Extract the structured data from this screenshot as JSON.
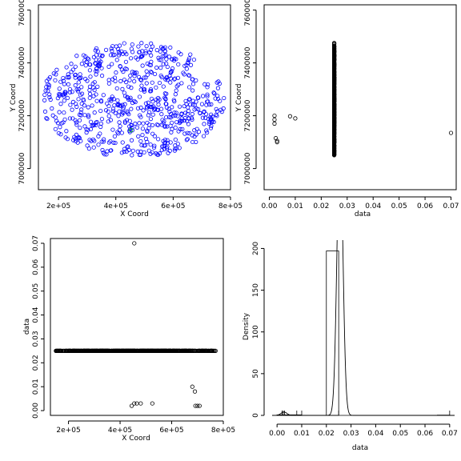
{
  "chart_data": [
    {
      "type": "scatter",
      "xlabel": "X Coord",
      "ylabel": "Y Coord",
      "xlim": [
        130000,
        800000
      ],
      "ylim": [
        6920000,
        7620000
      ],
      "xticks": [
        "2e+05",
        "4e+05",
        "6e+05",
        "8e+05"
      ],
      "yticks": [
        "7000000",
        "7200000",
        "7400000",
        "7600000"
      ],
      "point_color": "#0000ff",
      "highlight_color": "#00c000",
      "n_points": 700,
      "highlight_points": [
        {
          "x": 453000,
          "y": 7145000
        }
      ]
    },
    {
      "type": "scatter",
      "xlabel": "data",
      "ylabel": "Y Coord",
      "xlim": [
        0,
        0.07
      ],
      "ylim": [
        6920000,
        7620000
      ],
      "xticks": [
        "0.00",
        "0.01",
        "0.02",
        "0.03",
        "0.04",
        "0.05",
        "0.06",
        "0.07"
      ],
      "yticks": [
        "7000000",
        "7200000",
        "7400000",
        "7600000"
      ],
      "main_cluster": {
        "x": 0.025,
        "y_range": [
          7050000,
          7490000
        ]
      },
      "outliers": [
        {
          "x": 0.002,
          "y": 7200000
        },
        {
          "x": 0.002,
          "y": 7185000
        },
        {
          "x": 0.002,
          "y": 7170000
        },
        {
          "x": 0.0025,
          "y": 7115000
        },
        {
          "x": 0.003,
          "y": 7105000
        },
        {
          "x": 0.003,
          "y": 7100000
        },
        {
          "x": 0.008,
          "y": 7198000
        },
        {
          "x": 0.01,
          "y": 7190000
        },
        {
          "x": 0.07,
          "y": 7135000
        }
      ]
    },
    {
      "type": "scatter",
      "xlabel": "X Coord",
      "ylabel": "data",
      "xlim": [
        130000,
        800000
      ],
      "ylim": [
        0,
        0.072
      ],
      "xticks": [
        "2e+05",
        "4e+05",
        "6e+05",
        "8e+05"
      ],
      "yticks": [
        "0.00",
        "0.01",
        "0.02",
        "0.03",
        "0.04",
        "0.05",
        "0.06",
        "0.07"
      ],
      "main_band": {
        "y": 0.025,
        "x_range": [
          150000,
          775000
        ]
      },
      "outliers": [
        {
          "x": 455000,
          "y": 0.07
        },
        {
          "x": 445000,
          "y": 0.002
        },
        {
          "x": 455000,
          "y": 0.003
        },
        {
          "x": 465000,
          "y": 0.003
        },
        {
          "x": 480000,
          "y": 0.003
        },
        {
          "x": 525000,
          "y": 0.003
        },
        {
          "x": 680000,
          "y": 0.01
        },
        {
          "x": 690000,
          "y": 0.008
        },
        {
          "x": 692000,
          "y": 0.002
        },
        {
          "x": 700000,
          "y": 0.002
        },
        {
          "x": 708000,
          "y": 0.002
        }
      ]
    },
    {
      "type": "histogram",
      "xlabel": "data",
      "ylabel": "Density",
      "xlim": [
        -0.002,
        0.072
      ],
      "ylim": [
        0,
        210
      ],
      "xticks": [
        "0.00",
        "0.01",
        "0.02",
        "0.03",
        "0.04",
        "0.05",
        "0.06",
        "0.07"
      ],
      "yticks": [
        "0",
        "50",
        "100",
        "150",
        "200"
      ],
      "bins": [
        {
          "x0": 0.0,
          "x1": 0.005,
          "density": 0.6
        },
        {
          "x0": 0.005,
          "x1": 0.01,
          "density": 0.6
        },
        {
          "x0": 0.02,
          "x1": 0.025,
          "density": 197
        },
        {
          "x0": 0.025,
          "x1": 0.03,
          "density": 0
        },
        {
          "x0": 0.065,
          "x1": 0.07,
          "density": 0.3
        }
      ],
      "rug": [
        0.002,
        0.0025,
        0.003,
        0.008,
        0.01,
        0.025,
        0.07
      ],
      "kde_peak": {
        "x": 0.0255,
        "sd": 0.0012,
        "height": 330
      },
      "kde_small_bump": {
        "x": 0.0028,
        "sd": 0.0012,
        "height": 4
      }
    }
  ]
}
